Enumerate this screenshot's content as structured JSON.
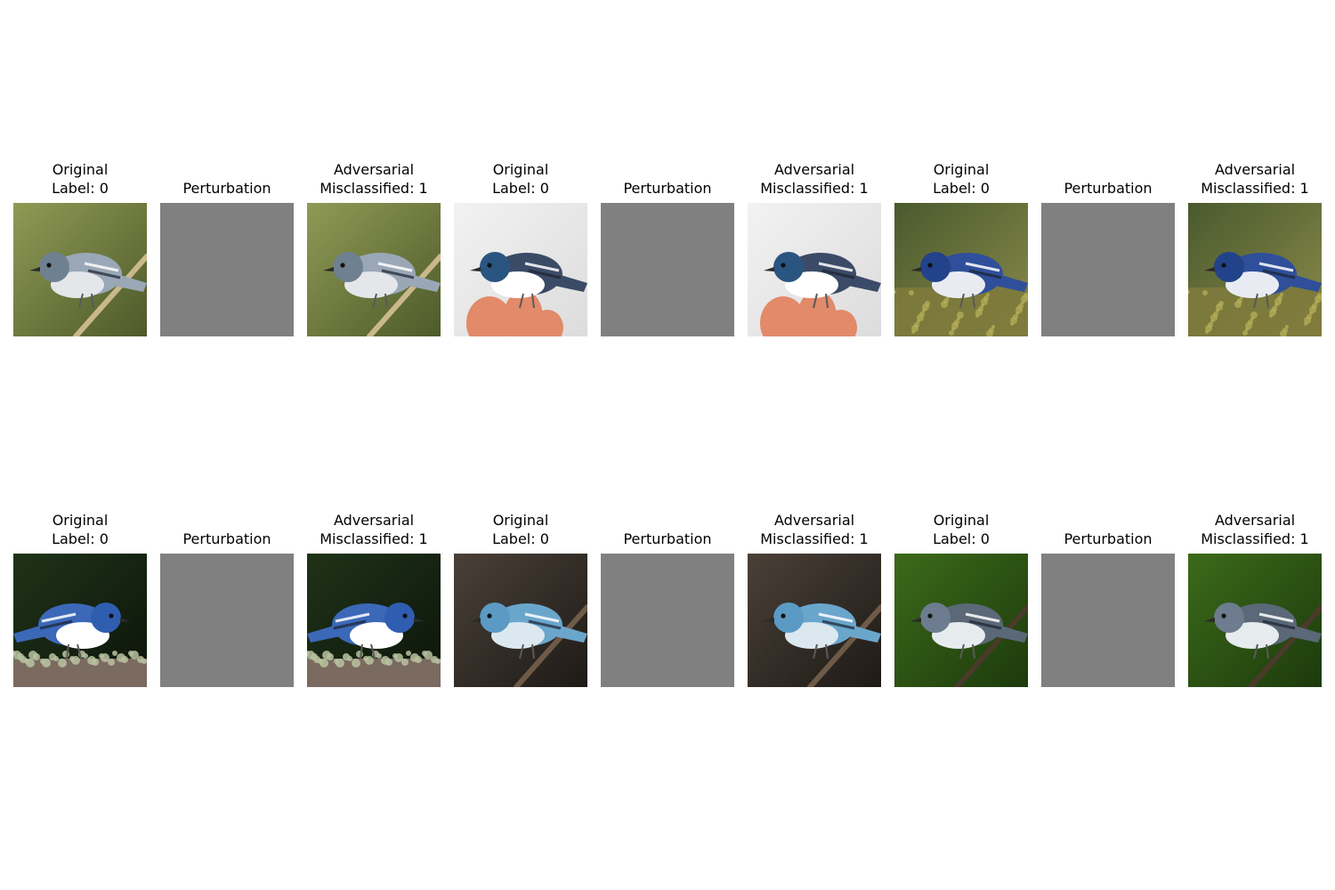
{
  "rows": [
    {
      "panels": [
        {
          "kind": "original",
          "title_1": "Original",
          "title_2": "Label: 0",
          "image": "bird-1",
          "scene": {
            "bg1": "#8f9a55",
            "bg2": "#4e5a2a",
            "body": "#9aa7b6",
            "head": "#6f8090",
            "belly": "#e4e6ea",
            "perch": "#c9b98a",
            "dir": -1
          }
        },
        {
          "kind": "perturbation",
          "title_1": "",
          "title_2": "Perturbation",
          "image": "perturbation-map",
          "color": "#808080"
        },
        {
          "kind": "adversarial",
          "title_1": "Adversarial",
          "title_2": "Misclassified: 1",
          "image": "bird-1-adversarial",
          "scene": {
            "bg1": "#8f9a55",
            "bg2": "#4e5a2a",
            "body": "#9aa7b6",
            "head": "#6f8090",
            "belly": "#e4e6ea",
            "perch": "#c9b98a",
            "dir": -1
          }
        },
        {
          "kind": "original",
          "title_1": "Original",
          "title_2": "Label: 0",
          "image": "bird-2",
          "scene": {
            "bg1": "#f2f2f2",
            "bg2": "#dcdcdc",
            "body": "#3b4a66",
            "head": "#2a5580",
            "belly": "#ffffff",
            "perch": "#e28a6a",
            "dir": -1,
            "hand": true
          }
        },
        {
          "kind": "perturbation",
          "title_1": "",
          "title_2": "Perturbation",
          "image": "perturbation-map",
          "color": "#808080"
        },
        {
          "kind": "adversarial",
          "title_1": "Adversarial",
          "title_2": "Misclassified: 1",
          "image": "bird-2-adversarial",
          "scene": {
            "bg1": "#f2f2f2",
            "bg2": "#dcdcdc",
            "body": "#3b4a66",
            "head": "#2a5580",
            "belly": "#ffffff",
            "perch": "#e28a6a",
            "dir": -1,
            "hand": true
          }
        },
        {
          "kind": "original",
          "title_1": "Original",
          "title_2": "Label: 0",
          "image": "bird-3",
          "scene": {
            "bg1": "#4a5a2e",
            "bg2": "#8a8a4a",
            "body": "#2f4f9a",
            "head": "#22438a",
            "belly": "#e8ecf2",
            "perch": "#7d7a3c",
            "dir": -1,
            "ground": true
          }
        },
        {
          "kind": "perturbation",
          "title_1": "",
          "title_2": "Perturbation",
          "image": "perturbation-map",
          "color": "#808080"
        },
        {
          "kind": "adversarial",
          "title_1": "Adversarial",
          "title_2": "Misclassified: 1",
          "image": "bird-3-adversarial",
          "scene": {
            "bg1": "#4a5a2e",
            "bg2": "#8a8a4a",
            "body": "#2f4f9a",
            "head": "#22438a",
            "belly": "#e8ecf2",
            "perch": "#7d7a3c",
            "dir": -1,
            "ground": true
          }
        }
      ]
    },
    {
      "panels": [
        {
          "kind": "original",
          "title_1": "Original",
          "title_2": "Label: 0",
          "image": "bird-4",
          "scene": {
            "bg1": "#1f3318",
            "bg2": "#0c140a",
            "body": "#3c68b8",
            "head": "#2f5db0",
            "belly": "#ffffff",
            "perch": "#7a6a60",
            "dir": 1,
            "lichen": true
          }
        },
        {
          "kind": "perturbation",
          "title_1": "",
          "title_2": "Perturbation",
          "image": "perturbation-map",
          "color": "#808080"
        },
        {
          "kind": "adversarial",
          "title_1": "Adversarial",
          "title_2": "Misclassified: 1",
          "image": "bird-4-adversarial",
          "scene": {
            "bg1": "#1f3318",
            "bg2": "#0c140a",
            "body": "#3c68b8",
            "head": "#2f5db0",
            "belly": "#ffffff",
            "perch": "#7a6a60",
            "dir": 1,
            "lichen": true
          }
        },
        {
          "kind": "original",
          "title_1": "Original",
          "title_2": "Label: 0",
          "image": "bird-5",
          "scene": {
            "bg1": "#4a4038",
            "bg2": "#1e1a16",
            "body": "#6aa6cc",
            "head": "#5b9ac4",
            "belly": "#dbe8f0",
            "perch": "#6e5a48",
            "dir": -1
          }
        },
        {
          "kind": "perturbation",
          "title_1": "",
          "title_2": "Perturbation",
          "image": "perturbation-map",
          "color": "#808080"
        },
        {
          "kind": "adversarial",
          "title_1": "Adversarial",
          "title_2": "Misclassified: 1",
          "image": "bird-5-adversarial",
          "scene": {
            "bg1": "#4a4038",
            "bg2": "#1e1a16",
            "body": "#6aa6cc",
            "head": "#5b9ac4",
            "belly": "#dbe8f0",
            "perch": "#6e5a48",
            "dir": -1
          }
        },
        {
          "kind": "original",
          "title_1": "Original",
          "title_2": "Label: 0",
          "image": "bird-6",
          "scene": {
            "bg1": "#3c6a1a",
            "bg2": "#1c3a0c",
            "body": "#5a6878",
            "head": "#6d7c8e",
            "belly": "#e6ebee",
            "perch": "#4a3a2a",
            "dir": -1
          }
        },
        {
          "kind": "perturbation",
          "title_1": "",
          "title_2": "Perturbation",
          "image": "perturbation-map",
          "color": "#808080"
        },
        {
          "kind": "adversarial",
          "title_1": "Adversarial",
          "title_2": "Misclassified: 1",
          "image": "bird-6-adversarial",
          "scene": {
            "bg1": "#3c6a1a",
            "bg2": "#1c3a0c",
            "body": "#5a6878",
            "head": "#6d7c8e",
            "belly": "#e6ebee",
            "perch": "#4a3a2a",
            "dir": -1
          }
        }
      ]
    }
  ]
}
